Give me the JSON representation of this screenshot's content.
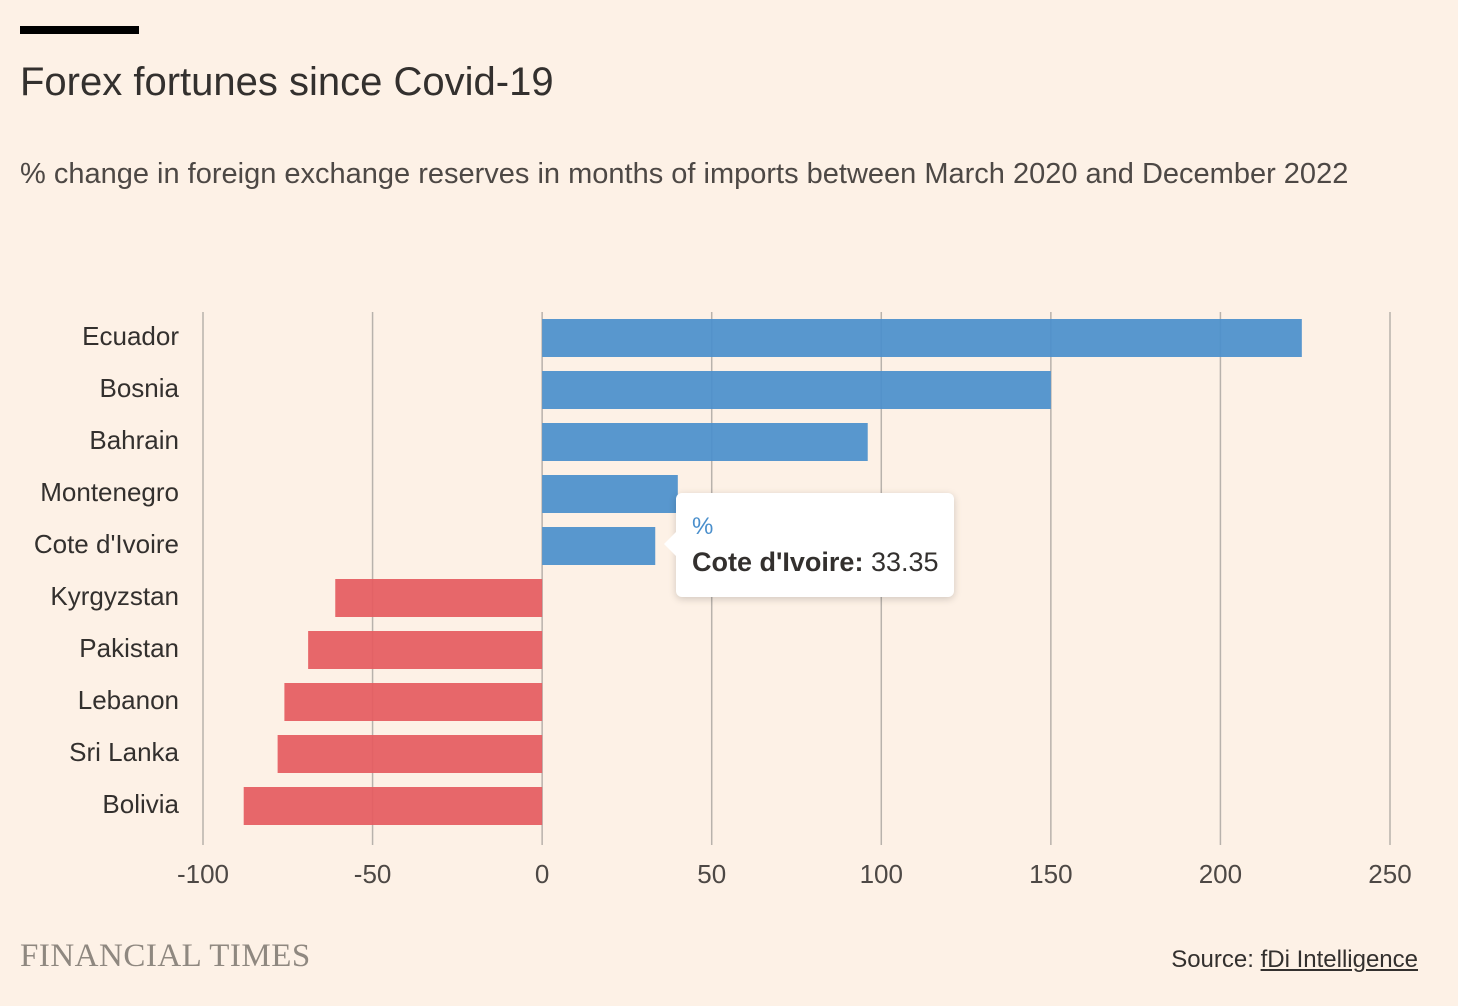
{
  "header": {
    "title": "Forex fortunes since Covid-19",
    "subtitle": "% change in foreign exchange reserves in months of imports between March 2020 and December 2022"
  },
  "footer": {
    "brand": "FINANCIAL TIMES",
    "source_prefix": "Source: ",
    "source_link": "fDi Intelligence"
  },
  "tooltip": {
    "series": "%",
    "category": "Cote d'Ivoire",
    "separator": ":",
    "value": "33.35"
  },
  "colors": {
    "positive": "#4a8fcc",
    "negative": "#e55b5f",
    "gridline": "#b8b2ac",
    "background": "#fdf1e6"
  },
  "chart_data": {
    "type": "bar",
    "orientation": "horizontal",
    "categories": [
      "Ecuador",
      "Bosnia",
      "Bahrain",
      "Montenegro",
      "Cote d'Ivoire",
      "Kyrgyzstan",
      "Pakistan",
      "Lebanon",
      "Sri Lanka",
      "Bolivia"
    ],
    "values": [
      224,
      150,
      96,
      40,
      33.35,
      -61,
      -69,
      -76,
      -78,
      -88
    ],
    "xlim": [
      -100,
      250
    ],
    "xticks": [
      -100,
      -50,
      0,
      50,
      100,
      150,
      200,
      250
    ],
    "xtick_labels": [
      "-100",
      "-50",
      "0",
      "50",
      "100",
      "150",
      "200",
      "250"
    ],
    "grid": true,
    "legend": "none"
  }
}
